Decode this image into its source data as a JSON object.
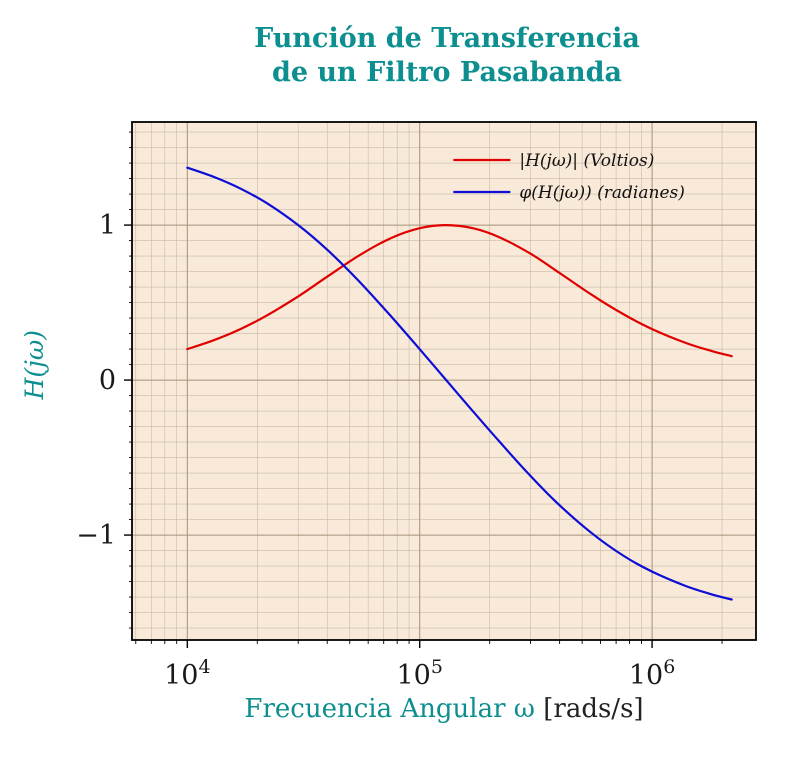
{
  "title": {
    "line1": "Función de Transferencia",
    "line2": "de un Filtro Pasabanda"
  },
  "ylabel": "H(jω)",
  "xlabel": {
    "main": "Frecuencia Angular ω ",
    "units": "[rads/s]"
  },
  "colors": {
    "title": "#0e8f8f",
    "magnitude": "#e00000",
    "phase": "#0d0dd6",
    "plot_bg": "#f8e9d9",
    "grid_minor": "#c9baa5",
    "grid_major": "#a3937a",
    "axis": "#000000",
    "tick_label": "#1a1a1a"
  },
  "legend": [
    {
      "label": "|H(jω)| (Voltios)",
      "series": "magnitude"
    },
    {
      "label": "φ(H(jω)) (radianes)",
      "series": "phase"
    }
  ],
  "axes": {
    "x_ticks": [
      {
        "base": "10",
        "exp": "4",
        "value": 10000
      },
      {
        "base": "10",
        "exp": "5",
        "value": 100000
      },
      {
        "base": "10",
        "exp": "6",
        "value": 1000000
      }
    ],
    "y_ticks": [
      {
        "label": "1",
        "value": 1
      },
      {
        "label": "0",
        "value": 0
      },
      {
        "label": "−1",
        "value": -1
      }
    ]
  },
  "chart_data": {
    "type": "line",
    "title": "Función de Transferencia de un Filtro Pasabanda",
    "xlabel": "Frecuencia Angular ω [rads/s]",
    "ylabel": "H(jω)",
    "x_scale": "log",
    "xlim": [
      5780,
      2800000
    ],
    "ylim": [
      -1.677,
      1.665
    ],
    "grid": "both-minor",
    "legend_position": "upper right",
    "x": [
      10000,
      13000,
      17000,
      22000,
      30000,
      40000,
      55000,
      75000,
      100000,
      130000,
      170000,
      220000,
      300000,
      400000,
      550000,
      750000,
      1000000,
      1400000,
      1800000,
      2200000
    ],
    "series": [
      {
        "name": "|H(jω)| (Voltios)",
        "color_key": "magnitude",
        "values": [
          0.2,
          0.257,
          0.33,
          0.417,
          0.54,
          0.667,
          0.805,
          0.915,
          0.98,
          1.0,
          0.979,
          0.922,
          0.815,
          0.691,
          0.55,
          0.426,
          0.329,
          0.239,
          0.188,
          0.154
        ]
      },
      {
        "name": "φ(H(jω)) (radianes)",
        "color_key": "phase",
        "values": [
          1.37,
          1.311,
          1.234,
          1.141,
          1.0,
          0.841,
          0.635,
          0.414,
          0.199,
          0.0,
          -0.204,
          -0.396,
          -0.619,
          -0.808,
          -0.988,
          -1.132,
          -1.236,
          -1.329,
          -1.382,
          -1.416
        ]
      }
    ]
  }
}
